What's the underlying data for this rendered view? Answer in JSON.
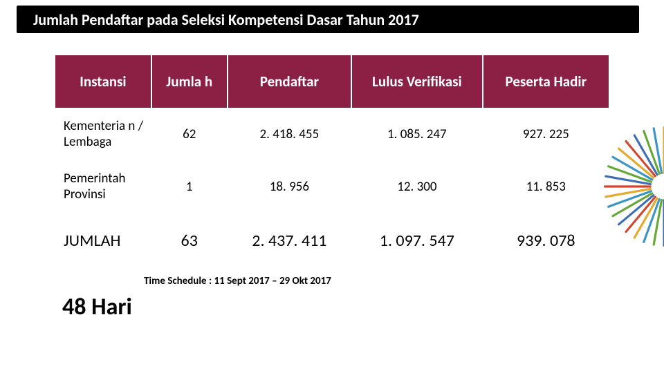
{
  "title": "Jumlah Pendaftar pada Seleksi Kompetensi Dasar Tahun 2017",
  "table": {
    "header_bg": "#8b2044",
    "header_fg": "#ffffff",
    "headers": [
      "Instansi",
      "Jumla h",
      "Pendaftar",
      "Lulus Verifikasi",
      "Peserta Hadir"
    ],
    "rows": [
      {
        "label": "Kementeria n / Lembaga",
        "jumlah": "62",
        "pendaftar": "2. 418. 455",
        "lulus": "1. 085. 247",
        "hadir": "927. 225"
      },
      {
        "label": "Pemerintah Provinsi",
        "jumlah": "1",
        "pendaftar": "18. 956",
        "lulus": "12. 300",
        "hadir": "11. 853"
      }
    ],
    "total": {
      "label": "JUMLAH",
      "jumlah": "63",
      "pendaftar": "2. 437. 411",
      "lulus": "1. 097. 547",
      "hadir": "939. 078"
    }
  },
  "schedule_text": "Time Schedule : 11 Sept 2017 – 29 Okt 2017",
  "days_text": "48 Hari",
  "deco_colors": [
    "#66a837",
    "#3a94c4",
    "#e5a92b",
    "#d2452f",
    "#3d6fb5"
  ]
}
